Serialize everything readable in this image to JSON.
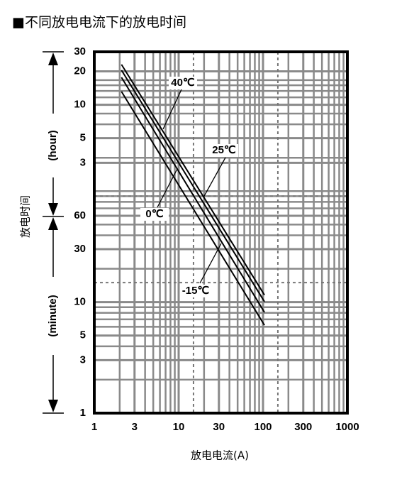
{
  "chart_data": {
    "type": "line",
    "title": "■不同放电电流下的放电时间",
    "xlabel": "放电电流(A)",
    "ylabel": "放电时间",
    "y_upper_label": "(hour)",
    "y_lower_label": "(minute)",
    "xscale": "log",
    "yscale": "log",
    "grid": true,
    "xlim": [
      1,
      1000
    ],
    "xticks": [
      1,
      3,
      10,
      30,
      100,
      300,
      1000
    ],
    "ylim": [
      1,
      1800
    ],
    "yticks": [
      {
        "value": 1800,
        "label": "30"
      },
      {
        "value": 1200,
        "label": "20"
      },
      {
        "value": 600,
        "label": "10"
      },
      {
        "value": 300,
        "label": "5"
      },
      {
        "value": 180,
        "label": "3"
      },
      60,
      30,
      10,
      5,
      3,
      1
    ],
    "dashed_x": [
      15,
      150
    ],
    "dashed_y": [
      90,
      15
    ],
    "series": [
      {
        "name": "40℃",
        "color": "#000000",
        "x": [
          2.1,
          104
        ],
        "values": [
          1384,
          11.6
        ]
      },
      {
        "name": "25℃",
        "color": "#000000",
        "x": [
          2.1,
          104
        ],
        "values": [
          1230,
          10.1
        ]
      },
      {
        "name": "0℃",
        "color": "#000000",
        "x": [
          2.1,
          104
        ],
        "values": [
          1060,
          8.1
        ]
      },
      {
        "name": "-15℃",
        "color": "#000000",
        "x": [
          2.1,
          104
        ],
        "values": [
          789,
          6.2
        ]
      }
    ]
  }
}
